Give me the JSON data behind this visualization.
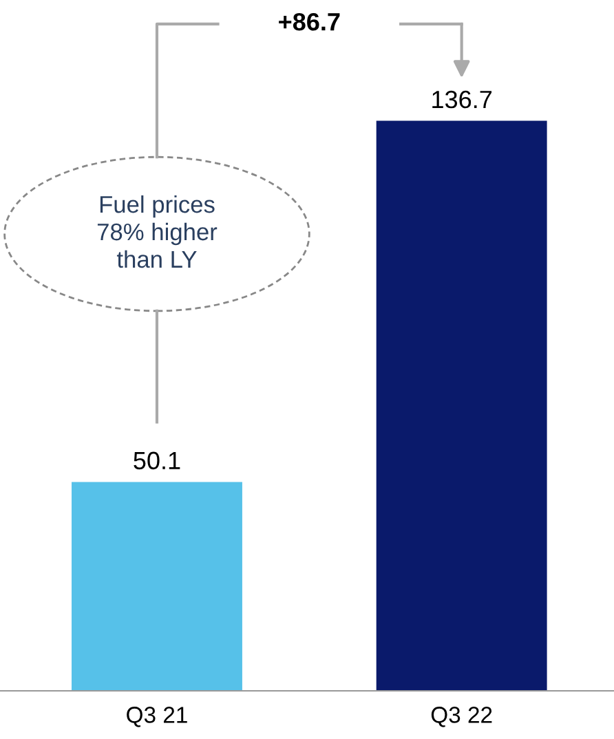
{
  "chart_data": {
    "type": "bar",
    "categories": [
      "Q3 21",
      "Q3 22"
    ],
    "values": [
      50.1,
      136.7
    ],
    "colors": [
      "#56c1e9",
      "#0a1a6b"
    ],
    "data_labels": true,
    "annotations": [
      "+86.7",
      "Fuel prices\n78% higher\nthan LY"
    ]
  }
}
